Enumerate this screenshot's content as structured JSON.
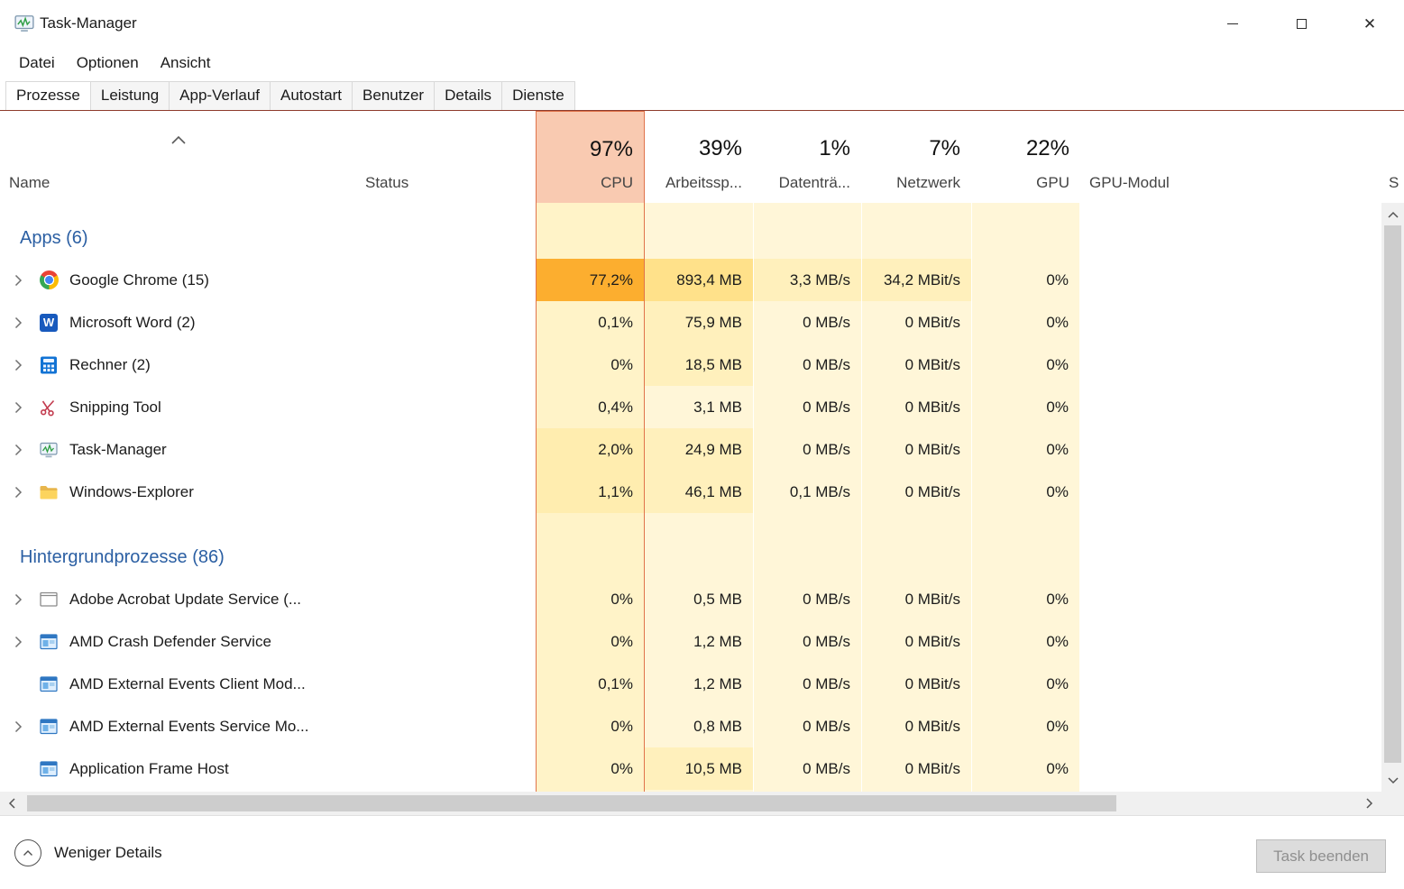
{
  "window": {
    "title": "Task-Manager"
  },
  "window_controls": {
    "minimize": "minimize",
    "maximize": "maximize",
    "close": "close"
  },
  "menu": {
    "items": [
      {
        "label": "Datei"
      },
      {
        "label": "Optionen"
      },
      {
        "label": "Ansicht"
      }
    ]
  },
  "tabs": [
    {
      "label": "Prozesse",
      "active": true
    },
    {
      "label": "Leistung",
      "active": false
    },
    {
      "label": "App-Verlauf",
      "active": false
    },
    {
      "label": "Autostart",
      "active": false
    },
    {
      "label": "Benutzer",
      "active": false
    },
    {
      "label": "Details",
      "active": false
    },
    {
      "label": "Dienste",
      "active": false
    }
  ],
  "columns": {
    "name": {
      "label": "Name",
      "sorted": "ascending"
    },
    "status": {
      "label": "Status"
    },
    "heat": [
      {
        "label": "CPU",
        "percent": "97%",
        "selected": true
      },
      {
        "label": "Arbeitssp...",
        "percent": "39%",
        "selected": false
      },
      {
        "label": "Datenträ...",
        "percent": "1%",
        "selected": false
      },
      {
        "label": "Netzwerk",
        "percent": "7%",
        "selected": false
      },
      {
        "label": "GPU",
        "percent": "22%",
        "selected": false
      }
    ],
    "gpu_modul": {
      "label": "GPU-Modul"
    },
    "cutoff": {
      "label": "S"
    }
  },
  "groups": [
    {
      "label": "Apps (6)",
      "rows": [
        {
          "name": "Google Chrome (15)",
          "icon": "chrome-icon",
          "expandable": true,
          "cells": [
            {
              "v": "77,2%",
              "h": 4
            },
            {
              "v": "893,4 MB",
              "h": 3
            },
            {
              "v": "3,3 MB/s",
              "h": 2
            },
            {
              "v": "34,2 MBit/s",
              "h": 2
            },
            {
              "v": "0%",
              "h": 1
            }
          ]
        },
        {
          "name": "Microsoft Word (2)",
          "icon": "word-icon",
          "expandable": true,
          "cells": [
            {
              "v": "0,1%",
              "h": 1
            },
            {
              "v": "75,9 MB",
              "h": 2
            },
            {
              "v": "0 MB/s",
              "h": 1
            },
            {
              "v": "0 MBit/s",
              "h": 1
            },
            {
              "v": "0%",
              "h": 1
            }
          ]
        },
        {
          "name": "Rechner (2)",
          "icon": "calculator-icon",
          "expandable": true,
          "cells": [
            {
              "v": "0%",
              "h": 1
            },
            {
              "v": "18,5 MB",
              "h": 2
            },
            {
              "v": "0 MB/s",
              "h": 1
            },
            {
              "v": "0 MBit/s",
              "h": 1
            },
            {
              "v": "0%",
              "h": 1
            }
          ]
        },
        {
          "name": "Snipping Tool",
          "icon": "snipping-tool-icon",
          "expandable": true,
          "cells": [
            {
              "v": "0,4%",
              "h": 1
            },
            {
              "v": "3,1 MB",
              "h": 1
            },
            {
              "v": "0 MB/s",
              "h": 1
            },
            {
              "v": "0 MBit/s",
              "h": 1
            },
            {
              "v": "0%",
              "h": 1
            }
          ]
        },
        {
          "name": "Task-Manager",
          "icon": "task-manager-icon",
          "expandable": true,
          "cells": [
            {
              "v": "2,0%",
              "h": 2
            },
            {
              "v": "24,9 MB",
              "h": 2
            },
            {
              "v": "0 MB/s",
              "h": 1
            },
            {
              "v": "0 MBit/s",
              "h": 1
            },
            {
              "v": "0%",
              "h": 1
            }
          ]
        },
        {
          "name": "Windows-Explorer",
          "icon": "folder-icon",
          "expandable": true,
          "cells": [
            {
              "v": "1,1%",
              "h": 2
            },
            {
              "v": "46,1 MB",
              "h": 2
            },
            {
              "v": "0,1 MB/s",
              "h": 1
            },
            {
              "v": "0 MBit/s",
              "h": 1
            },
            {
              "v": "0%",
              "h": 1
            }
          ]
        }
      ]
    },
    {
      "label": "Hintergrundprozesse (86)",
      "rows": [
        {
          "name": "Adobe Acrobat Update Service (...",
          "icon": "window-outline-icon",
          "expandable": true,
          "cells": [
            {
              "v": "0%",
              "h": 1
            },
            {
              "v": "0,5 MB",
              "h": 1
            },
            {
              "v": "0 MB/s",
              "h": 1
            },
            {
              "v": "0 MBit/s",
              "h": 1
            },
            {
              "v": "0%",
              "h": 1
            }
          ]
        },
        {
          "name": "AMD Crash Defender Service",
          "icon": "app-window-icon",
          "expandable": true,
          "cells": [
            {
              "v": "0%",
              "h": 1
            },
            {
              "v": "1,2 MB",
              "h": 1
            },
            {
              "v": "0 MB/s",
              "h": 1
            },
            {
              "v": "0 MBit/s",
              "h": 1
            },
            {
              "v": "0%",
              "h": 1
            }
          ]
        },
        {
          "name": "AMD External Events Client Mod...",
          "icon": "app-window-icon",
          "expandable": false,
          "cells": [
            {
              "v": "0,1%",
              "h": 1
            },
            {
              "v": "1,2 MB",
              "h": 1
            },
            {
              "v": "0 MB/s",
              "h": 1
            },
            {
              "v": "0 MBit/s",
              "h": 1
            },
            {
              "v": "0%",
              "h": 1
            }
          ]
        },
        {
          "name": "AMD External Events Service Mo...",
          "icon": "app-window-icon",
          "expandable": true,
          "cells": [
            {
              "v": "0%",
              "h": 1
            },
            {
              "v": "0,8 MB",
              "h": 1
            },
            {
              "v": "0 MB/s",
              "h": 1
            },
            {
              "v": "0 MBit/s",
              "h": 1
            },
            {
              "v": "0%",
              "h": 1
            }
          ]
        },
        {
          "name": "Application Frame Host",
          "icon": "app-window-icon",
          "expandable": false,
          "cells": [
            {
              "v": "0%",
              "h": 1
            },
            {
              "v": "10,5 MB",
              "h": 2
            },
            {
              "v": "0 MB/s",
              "h": 1
            },
            {
              "v": "0 MBit/s",
              "h": 1
            },
            {
              "v": "0%",
              "h": 1
            }
          ]
        }
      ]
    }
  ],
  "footer": {
    "toggle_label": "Weniger Details",
    "end_task_label": "Task beenden"
  },
  "colors": {
    "heat_l1": "#FFF6D8",
    "heat_l2": "#FFF0BC",
    "heat_l3": "#FFE18A",
    "heat_l4": "#FCAE2F",
    "cpu_l1": "#FFF3C8",
    "cpu_l2": "#FFEDAF",
    "heat_border": "#E0734B",
    "heat_header": "#F9CAB1",
    "group_text": "#2B5FA3",
    "scroll_thumb": "#CDCDCD",
    "scroll_track": "#F0F0F0"
  }
}
